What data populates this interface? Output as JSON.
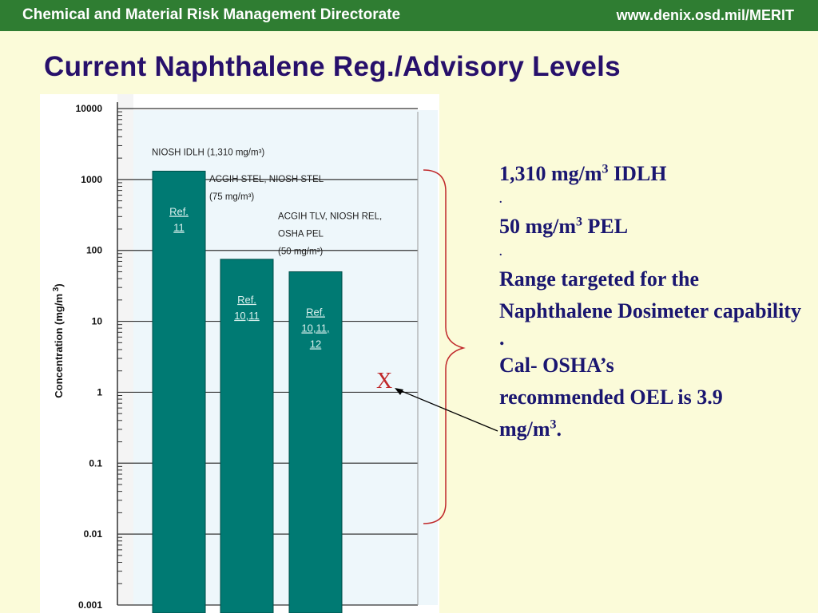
{
  "header": {
    "left_text": "Chemical and Material Risk Management Directorate",
    "right_text": "www.denix.osd.mil/MERIT"
  },
  "slide": {
    "title": "Current Naphthalene Reg./Advisory Levels"
  },
  "chart_data": {
    "type": "bar",
    "yscale": "log",
    "ylim": [
      0.001,
      10000
    ],
    "ylabel": "Concentration (mg/m",
    "ylabel_sup": "3",
    "ylabel_close": ")",
    "yticks": [
      "10000",
      "1000",
      "100",
      "10",
      "1",
      "0.1",
      "0.01",
      "0.001"
    ],
    "bars": [
      {
        "value": 1310,
        "label_lines": [
          "Ref.",
          "11"
        ],
        "annotation_lines": [
          "NIOSH IDLH (1,310 mg/m³)"
        ]
      },
      {
        "value": 75,
        "label_lines": [
          "Ref.",
          "10,11"
        ],
        "annotation_lines": [
          "ACGIH STEL, NIOSH STEL",
          "(75 mg/m³)"
        ]
      },
      {
        "value": 50,
        "label_lines": [
          "Ref.",
          "10,11,",
          "12"
        ],
        "annotation_lines": [
          "ACGIH TLV, NIOSH REL,",
          "OSHA PEL",
          "(50 mg/m³)"
        ]
      }
    ],
    "gridlines": true,
    "bar_color": "#007a73",
    "marker": {
      "text": "X",
      "value": 3.9
    }
  },
  "notes": {
    "idlh_value": "1,310 mg/m",
    "idlh_sup": "3",
    "idlh_label": " IDLH",
    "sep1": ".",
    "pel_value": "50 mg/m",
    "pel_sup": "3",
    "pel_label": " PEL",
    "sep2": ".",
    "range_text": "Range targeted for the Naphthalene Dosimeter capability",
    "sep3": ".",
    "oel_line1": "Cal- OSHA’s",
    "oel_line2": "recommended OEL is 3.9",
    "oel_unit": "mg/m",
    "oel_sup": "3",
    "oel_end": "."
  },
  "colors": {
    "banner": "#2f7d32",
    "title": "#27106b",
    "notes_text": "#1a1670",
    "bar": "#007a73",
    "brace": "#c0282a",
    "marker": "#c0282a"
  }
}
